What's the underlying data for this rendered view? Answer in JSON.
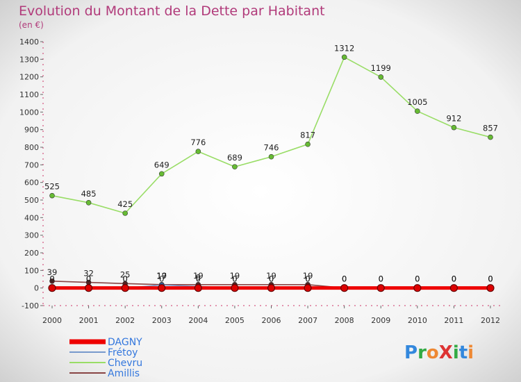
{
  "chart_data": {
    "type": "line",
    "title": "Evolution du Montant de la Dette par Habitant",
    "subtitle": "(en €)",
    "x": [
      "2000",
      "2001",
      "2002",
      "2003",
      "2004",
      "2005",
      "2006",
      "2007",
      "2008",
      "2009",
      "2010",
      "2011",
      "2012"
    ],
    "ylim": [
      -100,
      1400
    ],
    "yticks": [
      -100,
      0,
      100,
      200,
      300,
      400,
      500,
      600,
      700,
      800,
      900,
      1000,
      1100,
      1200,
      1300,
      1400
    ],
    "series": [
      {
        "name": "Chevru",
        "color": "#99dd66",
        "point_color": "#66bb33",
        "values": [
          525,
          485,
          425,
          649,
          776,
          689,
          746,
          817,
          1312,
          1199,
          1005,
          912,
          857
        ]
      },
      {
        "name": "Amillis",
        "color": "#884444",
        "point_color": "#552222",
        "values": [
          39,
          32,
          25,
          19,
          19,
          19,
          19,
          19,
          0,
          0,
          0,
          0,
          0
        ]
      },
      {
        "name": "Frétoy",
        "color": "#7799cc",
        "point_color": "#3366aa",
        "values": [
          0,
          0,
          0,
          17,
          9,
          0,
          0,
          0,
          0,
          0,
          0,
          0,
          0
        ]
      },
      {
        "name": "DAGNY",
        "color": "#ee0000",
        "point_color": "#dd0000",
        "values": [
          0,
          0,
          0,
          0,
          0,
          0,
          0,
          0,
          0,
          0,
          0,
          0,
          0
        ]
      }
    ],
    "grid": false,
    "legend": "bottom-left"
  },
  "legend": [
    {
      "name": "DAGNY",
      "color": "#ee0000",
      "text_color": "#3377dd"
    },
    {
      "name": "Frétoy",
      "color": "#7799cc",
      "text_color": "#3377dd"
    },
    {
      "name": "Chevru",
      "color": "#99dd66",
      "text_color": "#3377dd"
    },
    {
      "name": "Amillis",
      "color": "#884444",
      "text_color": "#3377dd"
    }
  ],
  "logo": {
    "text": "ProXiti"
  }
}
